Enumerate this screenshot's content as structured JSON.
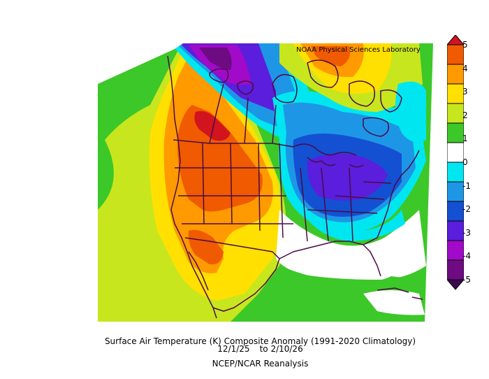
{
  "credit": "NOAA Physical Sciences Laboratory",
  "title": {
    "line1": "Surface Air Temperature (K) Composite Anomaly (1991-2020 Climatology)",
    "date_start": "12/1/25",
    "date_to": "to",
    "date_end": "2/10/26",
    "source": "NCEP/NCAR Reanalysis"
  },
  "colorbar": {
    "ticks": [
      "5",
      "4",
      "3",
      "2",
      "1",
      "0",
      "-1",
      "-2",
      "-3",
      "-4",
      "-5"
    ],
    "colors": [
      "#d2141e",
      "#f05a00",
      "#ff9a00",
      "#ffe000",
      "#c8e61e",
      "#3cc828",
      "#ffffff",
      "#00e6f0",
      "#1e96e6",
      "#1450d2",
      "#5a1edc",
      "#a00ac8",
      "#6e0a82",
      "#3c0a50"
    ]
  },
  "map": {
    "region": "North America",
    "palette": {
      "deep_neg": "#6e0a82",
      "purple": "#8c14c8",
      "violet": "#5a1edc",
      "blue": "#1450d2",
      "mid_blue": "#1e96e6",
      "cyan": "#00e6f0",
      "white": "#ffffff",
      "green": "#3cc828",
      "yellow_green": "#c8e61e",
      "yellow": "#ffe000",
      "orange": "#ff9a00",
      "dark_orange": "#f05a00",
      "red": "#d2141e",
      "border": "#4a0a46"
    }
  }
}
